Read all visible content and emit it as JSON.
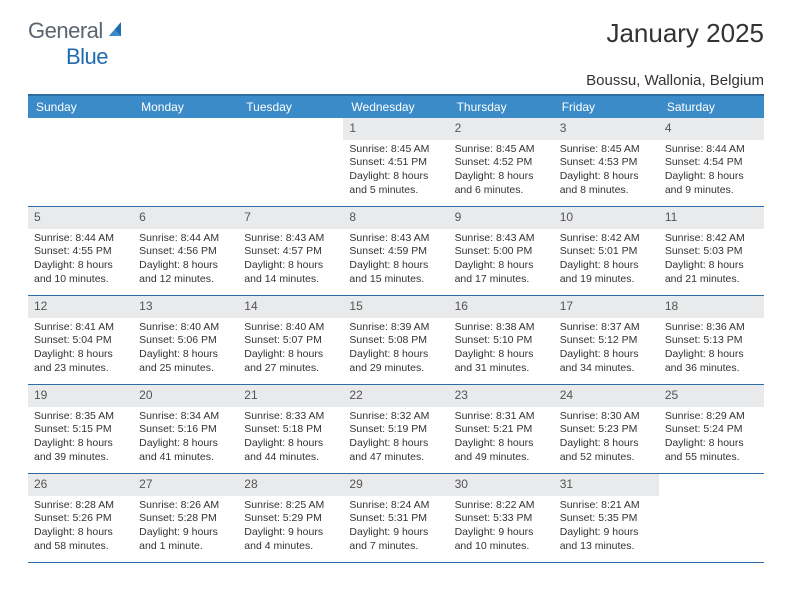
{
  "brand": {
    "part1": "General",
    "part2": "Blue"
  },
  "title": "January 2025",
  "location": "Boussu, Wallonia, Belgium",
  "colors": {
    "header_bg": "#3b8bc8",
    "border": "#2e6da4",
    "daynum_bg": "#e9eaec",
    "text": "#333333",
    "logo_gray": "#5a6570",
    "logo_blue": "#1f6bb0"
  },
  "weekdays": [
    "Sunday",
    "Monday",
    "Tuesday",
    "Wednesday",
    "Thursday",
    "Friday",
    "Saturday"
  ],
  "weeks": [
    [
      {
        "n": "",
        "sr": "",
        "ss": "",
        "dl1": "",
        "dl2": ""
      },
      {
        "n": "",
        "sr": "",
        "ss": "",
        "dl1": "",
        "dl2": ""
      },
      {
        "n": "",
        "sr": "",
        "ss": "",
        "dl1": "",
        "dl2": ""
      },
      {
        "n": "1",
        "sr": "Sunrise: 8:45 AM",
        "ss": "Sunset: 4:51 PM",
        "dl1": "Daylight: 8 hours",
        "dl2": "and 5 minutes."
      },
      {
        "n": "2",
        "sr": "Sunrise: 8:45 AM",
        "ss": "Sunset: 4:52 PM",
        "dl1": "Daylight: 8 hours",
        "dl2": "and 6 minutes."
      },
      {
        "n": "3",
        "sr": "Sunrise: 8:45 AM",
        "ss": "Sunset: 4:53 PM",
        "dl1": "Daylight: 8 hours",
        "dl2": "and 8 minutes."
      },
      {
        "n": "4",
        "sr": "Sunrise: 8:44 AM",
        "ss": "Sunset: 4:54 PM",
        "dl1": "Daylight: 8 hours",
        "dl2": "and 9 minutes."
      }
    ],
    [
      {
        "n": "5",
        "sr": "Sunrise: 8:44 AM",
        "ss": "Sunset: 4:55 PM",
        "dl1": "Daylight: 8 hours",
        "dl2": "and 10 minutes."
      },
      {
        "n": "6",
        "sr": "Sunrise: 8:44 AM",
        "ss": "Sunset: 4:56 PM",
        "dl1": "Daylight: 8 hours",
        "dl2": "and 12 minutes."
      },
      {
        "n": "7",
        "sr": "Sunrise: 8:43 AM",
        "ss": "Sunset: 4:57 PM",
        "dl1": "Daylight: 8 hours",
        "dl2": "and 14 minutes."
      },
      {
        "n": "8",
        "sr": "Sunrise: 8:43 AM",
        "ss": "Sunset: 4:59 PM",
        "dl1": "Daylight: 8 hours",
        "dl2": "and 15 minutes."
      },
      {
        "n": "9",
        "sr": "Sunrise: 8:43 AM",
        "ss": "Sunset: 5:00 PM",
        "dl1": "Daylight: 8 hours",
        "dl2": "and 17 minutes."
      },
      {
        "n": "10",
        "sr": "Sunrise: 8:42 AM",
        "ss": "Sunset: 5:01 PM",
        "dl1": "Daylight: 8 hours",
        "dl2": "and 19 minutes."
      },
      {
        "n": "11",
        "sr": "Sunrise: 8:42 AM",
        "ss": "Sunset: 5:03 PM",
        "dl1": "Daylight: 8 hours",
        "dl2": "and 21 minutes."
      }
    ],
    [
      {
        "n": "12",
        "sr": "Sunrise: 8:41 AM",
        "ss": "Sunset: 5:04 PM",
        "dl1": "Daylight: 8 hours",
        "dl2": "and 23 minutes."
      },
      {
        "n": "13",
        "sr": "Sunrise: 8:40 AM",
        "ss": "Sunset: 5:06 PM",
        "dl1": "Daylight: 8 hours",
        "dl2": "and 25 minutes."
      },
      {
        "n": "14",
        "sr": "Sunrise: 8:40 AM",
        "ss": "Sunset: 5:07 PM",
        "dl1": "Daylight: 8 hours",
        "dl2": "and 27 minutes."
      },
      {
        "n": "15",
        "sr": "Sunrise: 8:39 AM",
        "ss": "Sunset: 5:08 PM",
        "dl1": "Daylight: 8 hours",
        "dl2": "and 29 minutes."
      },
      {
        "n": "16",
        "sr": "Sunrise: 8:38 AM",
        "ss": "Sunset: 5:10 PM",
        "dl1": "Daylight: 8 hours",
        "dl2": "and 31 minutes."
      },
      {
        "n": "17",
        "sr": "Sunrise: 8:37 AM",
        "ss": "Sunset: 5:12 PM",
        "dl1": "Daylight: 8 hours",
        "dl2": "and 34 minutes."
      },
      {
        "n": "18",
        "sr": "Sunrise: 8:36 AM",
        "ss": "Sunset: 5:13 PM",
        "dl1": "Daylight: 8 hours",
        "dl2": "and 36 minutes."
      }
    ],
    [
      {
        "n": "19",
        "sr": "Sunrise: 8:35 AM",
        "ss": "Sunset: 5:15 PM",
        "dl1": "Daylight: 8 hours",
        "dl2": "and 39 minutes."
      },
      {
        "n": "20",
        "sr": "Sunrise: 8:34 AM",
        "ss": "Sunset: 5:16 PM",
        "dl1": "Daylight: 8 hours",
        "dl2": "and 41 minutes."
      },
      {
        "n": "21",
        "sr": "Sunrise: 8:33 AM",
        "ss": "Sunset: 5:18 PM",
        "dl1": "Daylight: 8 hours",
        "dl2": "and 44 minutes."
      },
      {
        "n": "22",
        "sr": "Sunrise: 8:32 AM",
        "ss": "Sunset: 5:19 PM",
        "dl1": "Daylight: 8 hours",
        "dl2": "and 47 minutes."
      },
      {
        "n": "23",
        "sr": "Sunrise: 8:31 AM",
        "ss": "Sunset: 5:21 PM",
        "dl1": "Daylight: 8 hours",
        "dl2": "and 49 minutes."
      },
      {
        "n": "24",
        "sr": "Sunrise: 8:30 AM",
        "ss": "Sunset: 5:23 PM",
        "dl1": "Daylight: 8 hours",
        "dl2": "and 52 minutes."
      },
      {
        "n": "25",
        "sr": "Sunrise: 8:29 AM",
        "ss": "Sunset: 5:24 PM",
        "dl1": "Daylight: 8 hours",
        "dl2": "and 55 minutes."
      }
    ],
    [
      {
        "n": "26",
        "sr": "Sunrise: 8:28 AM",
        "ss": "Sunset: 5:26 PM",
        "dl1": "Daylight: 8 hours",
        "dl2": "and 58 minutes."
      },
      {
        "n": "27",
        "sr": "Sunrise: 8:26 AM",
        "ss": "Sunset: 5:28 PM",
        "dl1": "Daylight: 9 hours",
        "dl2": "and 1 minute."
      },
      {
        "n": "28",
        "sr": "Sunrise: 8:25 AM",
        "ss": "Sunset: 5:29 PM",
        "dl1": "Daylight: 9 hours",
        "dl2": "and 4 minutes."
      },
      {
        "n": "29",
        "sr": "Sunrise: 8:24 AM",
        "ss": "Sunset: 5:31 PM",
        "dl1": "Daylight: 9 hours",
        "dl2": "and 7 minutes."
      },
      {
        "n": "30",
        "sr": "Sunrise: 8:22 AM",
        "ss": "Sunset: 5:33 PM",
        "dl1": "Daylight: 9 hours",
        "dl2": "and 10 minutes."
      },
      {
        "n": "31",
        "sr": "Sunrise: 8:21 AM",
        "ss": "Sunset: 5:35 PM",
        "dl1": "Daylight: 9 hours",
        "dl2": "and 13 minutes."
      },
      {
        "n": "",
        "sr": "",
        "ss": "",
        "dl1": "",
        "dl2": ""
      }
    ]
  ]
}
